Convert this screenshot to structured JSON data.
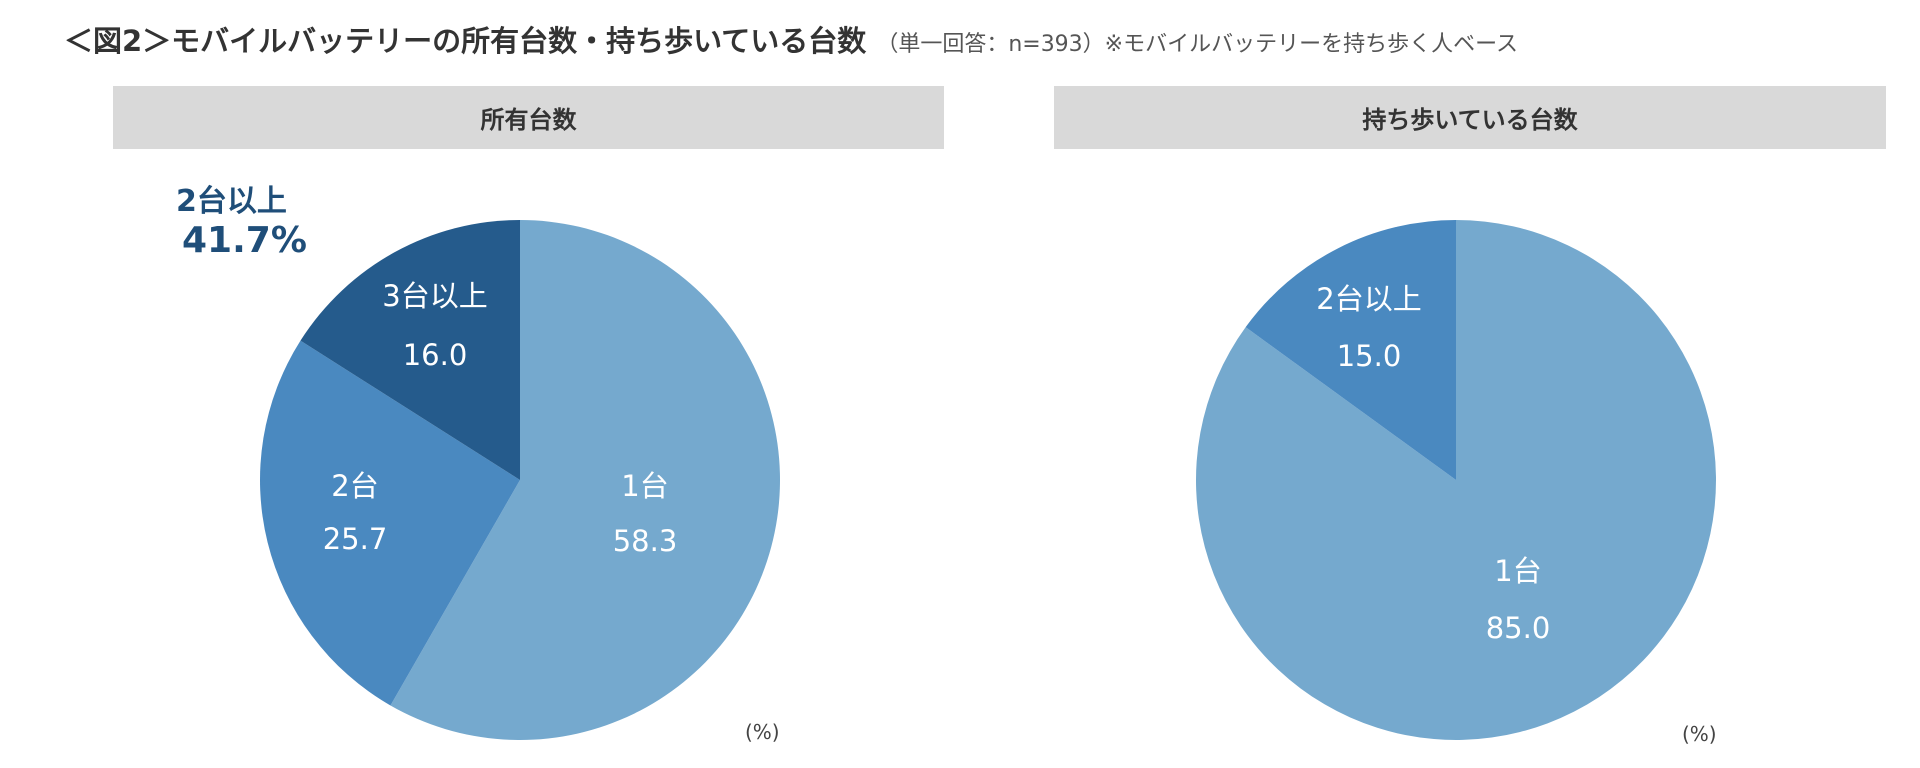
{
  "title": "＜図2＞モバイルバッテリーの所有台数・持ち歩いている台数",
  "subtitle": "（単一回答：n=393）※モバイルバッテリーを持ち歩く人ベース",
  "chart_data": [
    {
      "type": "pie",
      "title": "所有台数",
      "unit": "(%)",
      "categories": [
        "1台",
        "2台",
        "3台以上"
      ],
      "values": [
        58.3,
        25.7,
        16.0
      ],
      "value_labels": [
        "58.3",
        "25.7",
        "16.0"
      ],
      "colors": [
        "#75a9ce",
        "#4a89c0",
        "#255b8c"
      ],
      "annotation": {
        "label": "2台以上",
        "value": "41.7%",
        "color": "#1f4e79"
      }
    },
    {
      "type": "pie",
      "title": "持ち歩いている台数",
      "unit": "(%)",
      "categories": [
        "1台",
        "2台以上"
      ],
      "values": [
        85.0,
        15.0
      ],
      "value_labels": [
        "85.0",
        "15.0"
      ],
      "colors": [
        "#75a9ce",
        "#4a89c0"
      ]
    }
  ]
}
